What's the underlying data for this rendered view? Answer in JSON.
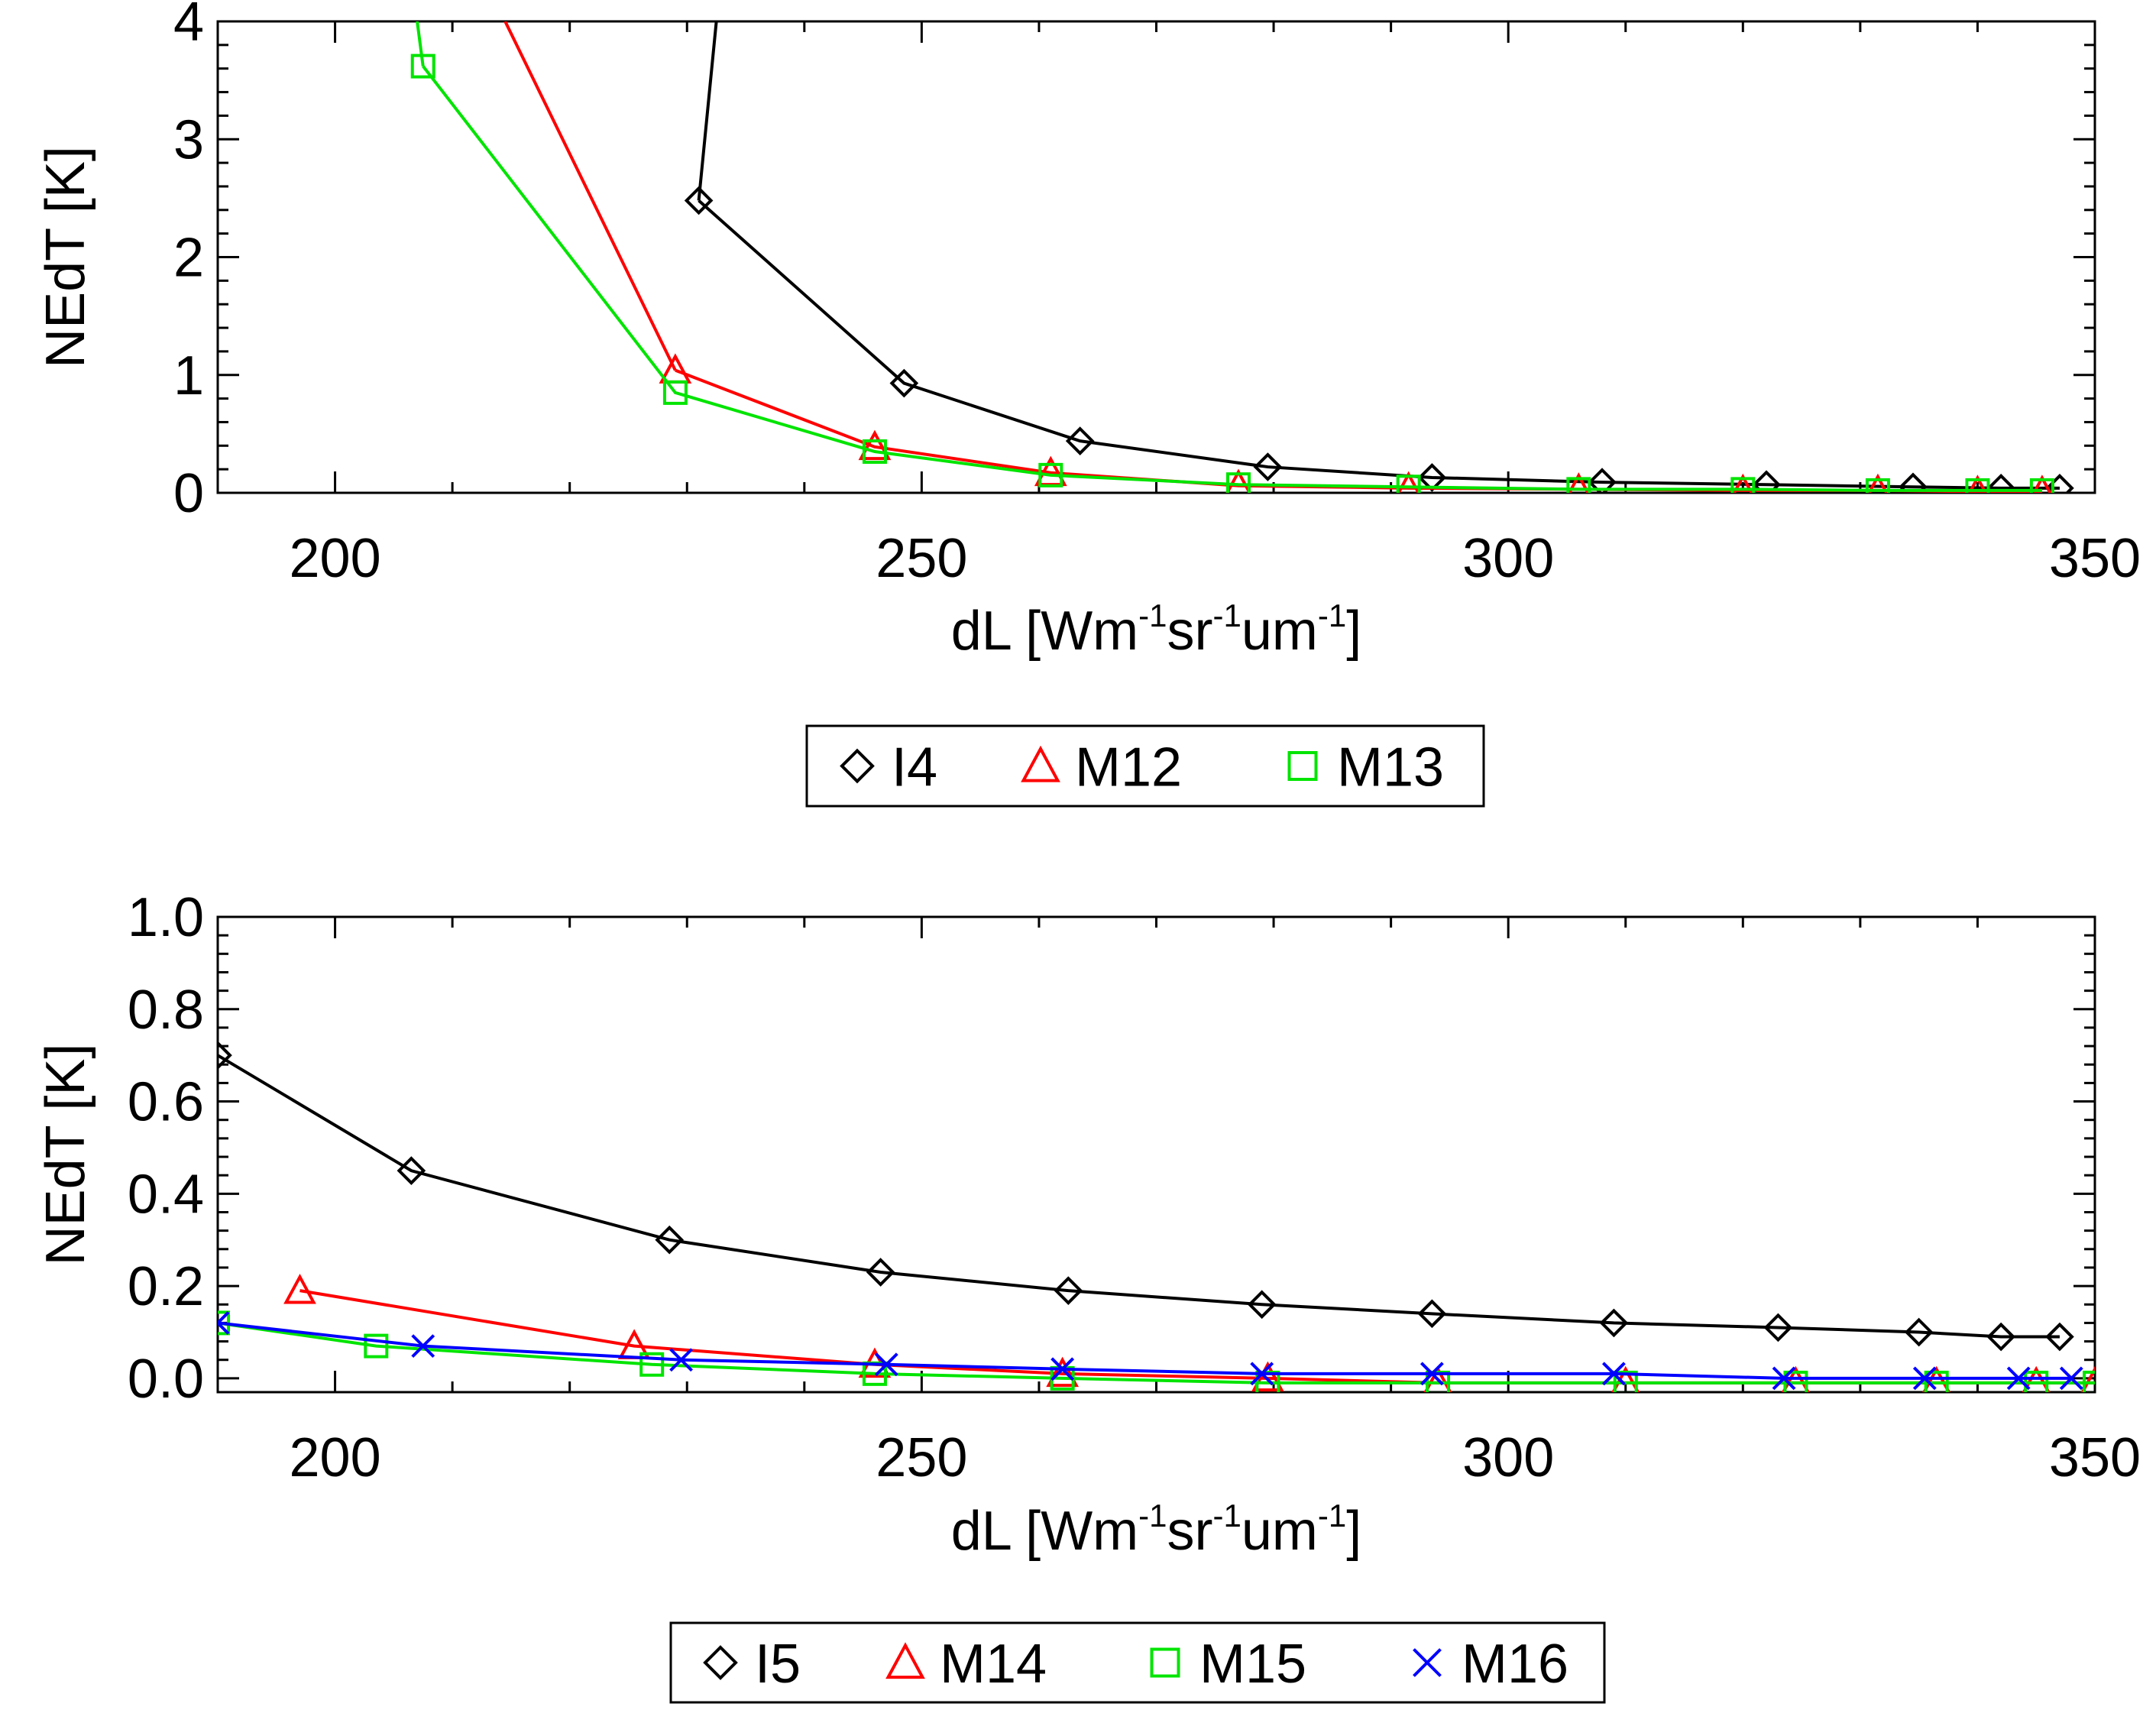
{
  "chart_data": [
    {
      "type": "line",
      "ylabel": "NEdT [K]",
      "xlabel_parts": [
        "dL [Wm",
        "-1",
        "sr",
        "-1",
        "um",
        "-1",
        "]"
      ],
      "xlim": [
        190,
        350
      ],
      "ylim": [
        0,
        4
      ],
      "xticks": [
        200,
        250,
        300,
        350
      ],
      "yticks": [
        0,
        1,
        2,
        3,
        4
      ],
      "ytick_labels": [
        "0",
        "1",
        "2",
        "3",
        "4"
      ],
      "series": [
        {
          "name": "I4",
          "color": "#000000",
          "marker": "diamond",
          "x": [
            231,
            248.5,
            263.5,
            279.5,
            293.5,
            308,
            322,
            334.5,
            342,
            347
          ],
          "y": [
            2.48,
            0.93,
            0.44,
            0.22,
            0.13,
            0.09,
            0.07,
            0.05,
            0.04,
            0.04
          ]
        },
        {
          "name": "M12",
          "color": "#ff0000",
          "marker": "triangle",
          "x": [
            229,
            246,
            261,
            277,
            291.5,
            306,
            320,
            331.5,
            340,
            345.5
          ],
          "y": [
            1.04,
            0.39,
            0.17,
            0.06,
            0.04,
            0.03,
            0.02,
            0.02,
            0.01,
            0.01
          ]
        },
        {
          "name": "M13",
          "color": "#00e400",
          "marker": "square",
          "x": [
            207.5,
            229,
            246,
            261,
            277,
            291.5,
            306,
            320,
            331.5,
            340,
            345.5
          ],
          "y": [
            3.62,
            0.85,
            0.35,
            0.15,
            0.07,
            0.05,
            0.03,
            0.03,
            0.02,
            0.02,
            0.02
          ]
        }
      ],
      "extra_lines": [
        {
          "color": "#000000",
          "x": [
            232.5,
            231
          ],
          "y": [
            4.0,
            2.48
          ]
        },
        {
          "color": "#ff0000",
          "x": [
            214.5,
            229
          ],
          "y": [
            4.0,
            1.04
          ]
        },
        {
          "color": "#00e400",
          "x": [
            207,
            207.5
          ],
          "y": [
            4.0,
            3.62
          ]
        }
      ],
      "legend": [
        "I4",
        "M12",
        "M13"
      ]
    },
    {
      "type": "line",
      "ylabel": "NEdT [K]",
      "xlabel_parts": [
        "dL [Wm",
        "-1",
        "sr",
        "-1",
        "um",
        "-1",
        "]"
      ],
      "xlim": [
        190,
        350
      ],
      "ylim": [
        -0.03,
        1.0
      ],
      "xticks": [
        200,
        250,
        300,
        350
      ],
      "yticks": [
        0.0,
        0.2,
        0.4,
        0.6,
        0.8,
        1.0
      ],
      "ytick_labels": [
        "0.0",
        "0.2",
        "0.4",
        "0.6",
        "0.8",
        "1.0"
      ],
      "series": [
        {
          "name": "I5",
          "color": "#000000",
          "marker": "diamond",
          "x": [
            190,
            206.5,
            228.5,
            246.5,
            262.5,
            279,
            293.5,
            309,
            323,
            335,
            342,
            347
          ],
          "y": [
            0.7,
            0.45,
            0.3,
            0.23,
            0.19,
            0.16,
            0.14,
            0.12,
            0.11,
            0.1,
            0.09,
            0.09
          ]
        },
        {
          "name": "M14",
          "color": "#ff0000",
          "marker": "triangle",
          "x": [
            197,
            225.5,
            246,
            262,
            279.5,
            294,
            310,
            324.5,
            336.5,
            345,
            350
          ],
          "y": [
            0.19,
            0.07,
            0.03,
            0.01,
            0.0,
            -0.01,
            -0.01,
            -0.01,
            -0.01,
            -0.01,
            -0.01
          ]
        },
        {
          "name": "M15",
          "color": "#00e400",
          "marker": "square",
          "x": [
            190,
            203.5,
            227,
            246,
            262,
            279.5,
            294,
            310,
            324.5,
            336.5,
            345,
            350
          ],
          "y": [
            0.12,
            0.07,
            0.03,
            0.01,
            0.0,
            -0.01,
            -0.01,
            -0.01,
            -0.01,
            -0.01,
            -0.01,
            -0.01
          ]
        },
        {
          "name": "M16",
          "color": "#0000ff",
          "marker": "x",
          "x": [
            190,
            207.5,
            229.5,
            247,
            262,
            279,
            293.5,
            309,
            323.5,
            335.5,
            343.5,
            348
          ],
          "y": [
            0.12,
            0.07,
            0.04,
            0.03,
            0.02,
            0.01,
            0.01,
            0.01,
            0.0,
            0.0,
            0.0,
            0.0
          ]
        }
      ],
      "legend": [
        "I5",
        "M14",
        "M15",
        "M16"
      ]
    }
  ]
}
